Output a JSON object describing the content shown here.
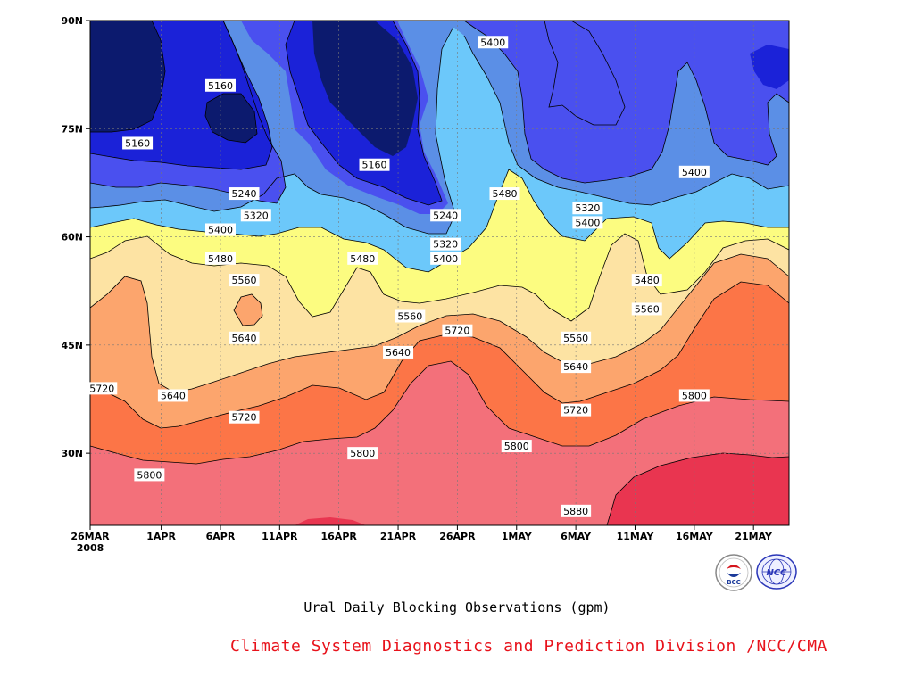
{
  "chart_data": {
    "type": "heatmap",
    "title": "Ural Daily Blocking Observations (gpm)",
    "x_ticks": [
      "26MAR",
      "1APR",
      "6APR",
      "11APR",
      "16APR",
      "21APR",
      "26APR",
      "1MAY",
      "6MAY",
      "11MAY",
      "16MAY",
      "21MAY"
    ],
    "x_year_label": "2008",
    "y_ticks": [
      "30N",
      "45N",
      "60N",
      "75N",
      "90N"
    ],
    "x_range": [
      "2008-03-26",
      "2008-05-24"
    ],
    "y_range": [
      20,
      90
    ],
    "grid": "dotted",
    "contour_levels": [
      5160,
      5240,
      5320,
      5400,
      5480,
      5560,
      5640,
      5720,
      5800,
      5880
    ],
    "level_colors": [
      "#0c1a6e",
      "#1b22d8",
      "#4a50ef",
      "#5b8fe6",
      "#6cc8fa",
      "#fcfc80",
      "#fde3a3",
      "#fca56d",
      "#fc7547",
      "#f3707a",
      "#e93550"
    ],
    "contour_labels": [
      {
        "value": "5160",
        "date": "2008-04-06",
        "lat": 81
      },
      {
        "value": "5160",
        "date": "2008-03-30",
        "lat": 73
      },
      {
        "value": "5160",
        "date": "2008-04-19",
        "lat": 70
      },
      {
        "value": "5240",
        "date": "2008-04-08",
        "lat": 66
      },
      {
        "value": "5320",
        "date": "2008-04-09",
        "lat": 63
      },
      {
        "value": "5400",
        "date": "2008-04-06",
        "lat": 61
      },
      {
        "value": "5480",
        "date": "2008-04-06",
        "lat": 57
      },
      {
        "value": "5560",
        "date": "2008-04-08",
        "lat": 54
      },
      {
        "value": "5480",
        "date": "2008-04-18",
        "lat": 57
      },
      {
        "value": "5240",
        "date": "2008-04-25",
        "lat": 63
      },
      {
        "value": "5320",
        "date": "2008-04-25",
        "lat": 59
      },
      {
        "value": "5400",
        "date": "2008-04-25",
        "lat": 57
      },
      {
        "value": "5400",
        "date": "2008-04-29",
        "lat": 87
      },
      {
        "value": "5480",
        "date": "2008-04-30",
        "lat": 66
      },
      {
        "value": "5320",
        "date": "2008-05-07",
        "lat": 64
      },
      {
        "value": "5400",
        "date": "2008-05-07",
        "lat": 62
      },
      {
        "value": "5400",
        "date": "2008-05-16",
        "lat": 69
      },
      {
        "value": "5480",
        "date": "2008-05-12",
        "lat": 54
      },
      {
        "value": "5560",
        "date": "2008-05-12",
        "lat": 50
      },
      {
        "value": "5560",
        "date": "2008-04-22",
        "lat": 49
      },
      {
        "value": "5560",
        "date": "2008-05-06",
        "lat": 46
      },
      {
        "value": "5640",
        "date": "2008-04-08",
        "lat": 46
      },
      {
        "value": "5640",
        "date": "2008-04-21",
        "lat": 44
      },
      {
        "value": "5720",
        "date": "2008-04-26",
        "lat": 47
      },
      {
        "value": "5640",
        "date": "2008-05-06",
        "lat": 42
      },
      {
        "value": "5720",
        "date": "2008-03-27",
        "lat": 39
      },
      {
        "value": "5640",
        "date": "2008-04-02",
        "lat": 38
      },
      {
        "value": "5720",
        "date": "2008-04-08",
        "lat": 35
      },
      {
        "value": "5720",
        "date": "2008-05-06",
        "lat": 36
      },
      {
        "value": "5800",
        "date": "2008-05-16",
        "lat": 38
      },
      {
        "value": "5800",
        "date": "2008-04-18",
        "lat": 30
      },
      {
        "value": "5800",
        "date": "2008-05-01",
        "lat": 31
      },
      {
        "value": "5800",
        "date": "2008-03-31",
        "lat": 27
      },
      {
        "value": "5880",
        "date": "2008-05-06",
        "lat": 22
      }
    ]
  },
  "credit": "Climate System Diagnostics and Prediction Division /NCC/CMA",
  "credit_color": "#e8121b",
  "logos": {
    "left": {
      "icon": "bcc-logo",
      "text": "BCC"
    },
    "right": {
      "icon": "ncc-logo",
      "text": "NCC"
    }
  }
}
